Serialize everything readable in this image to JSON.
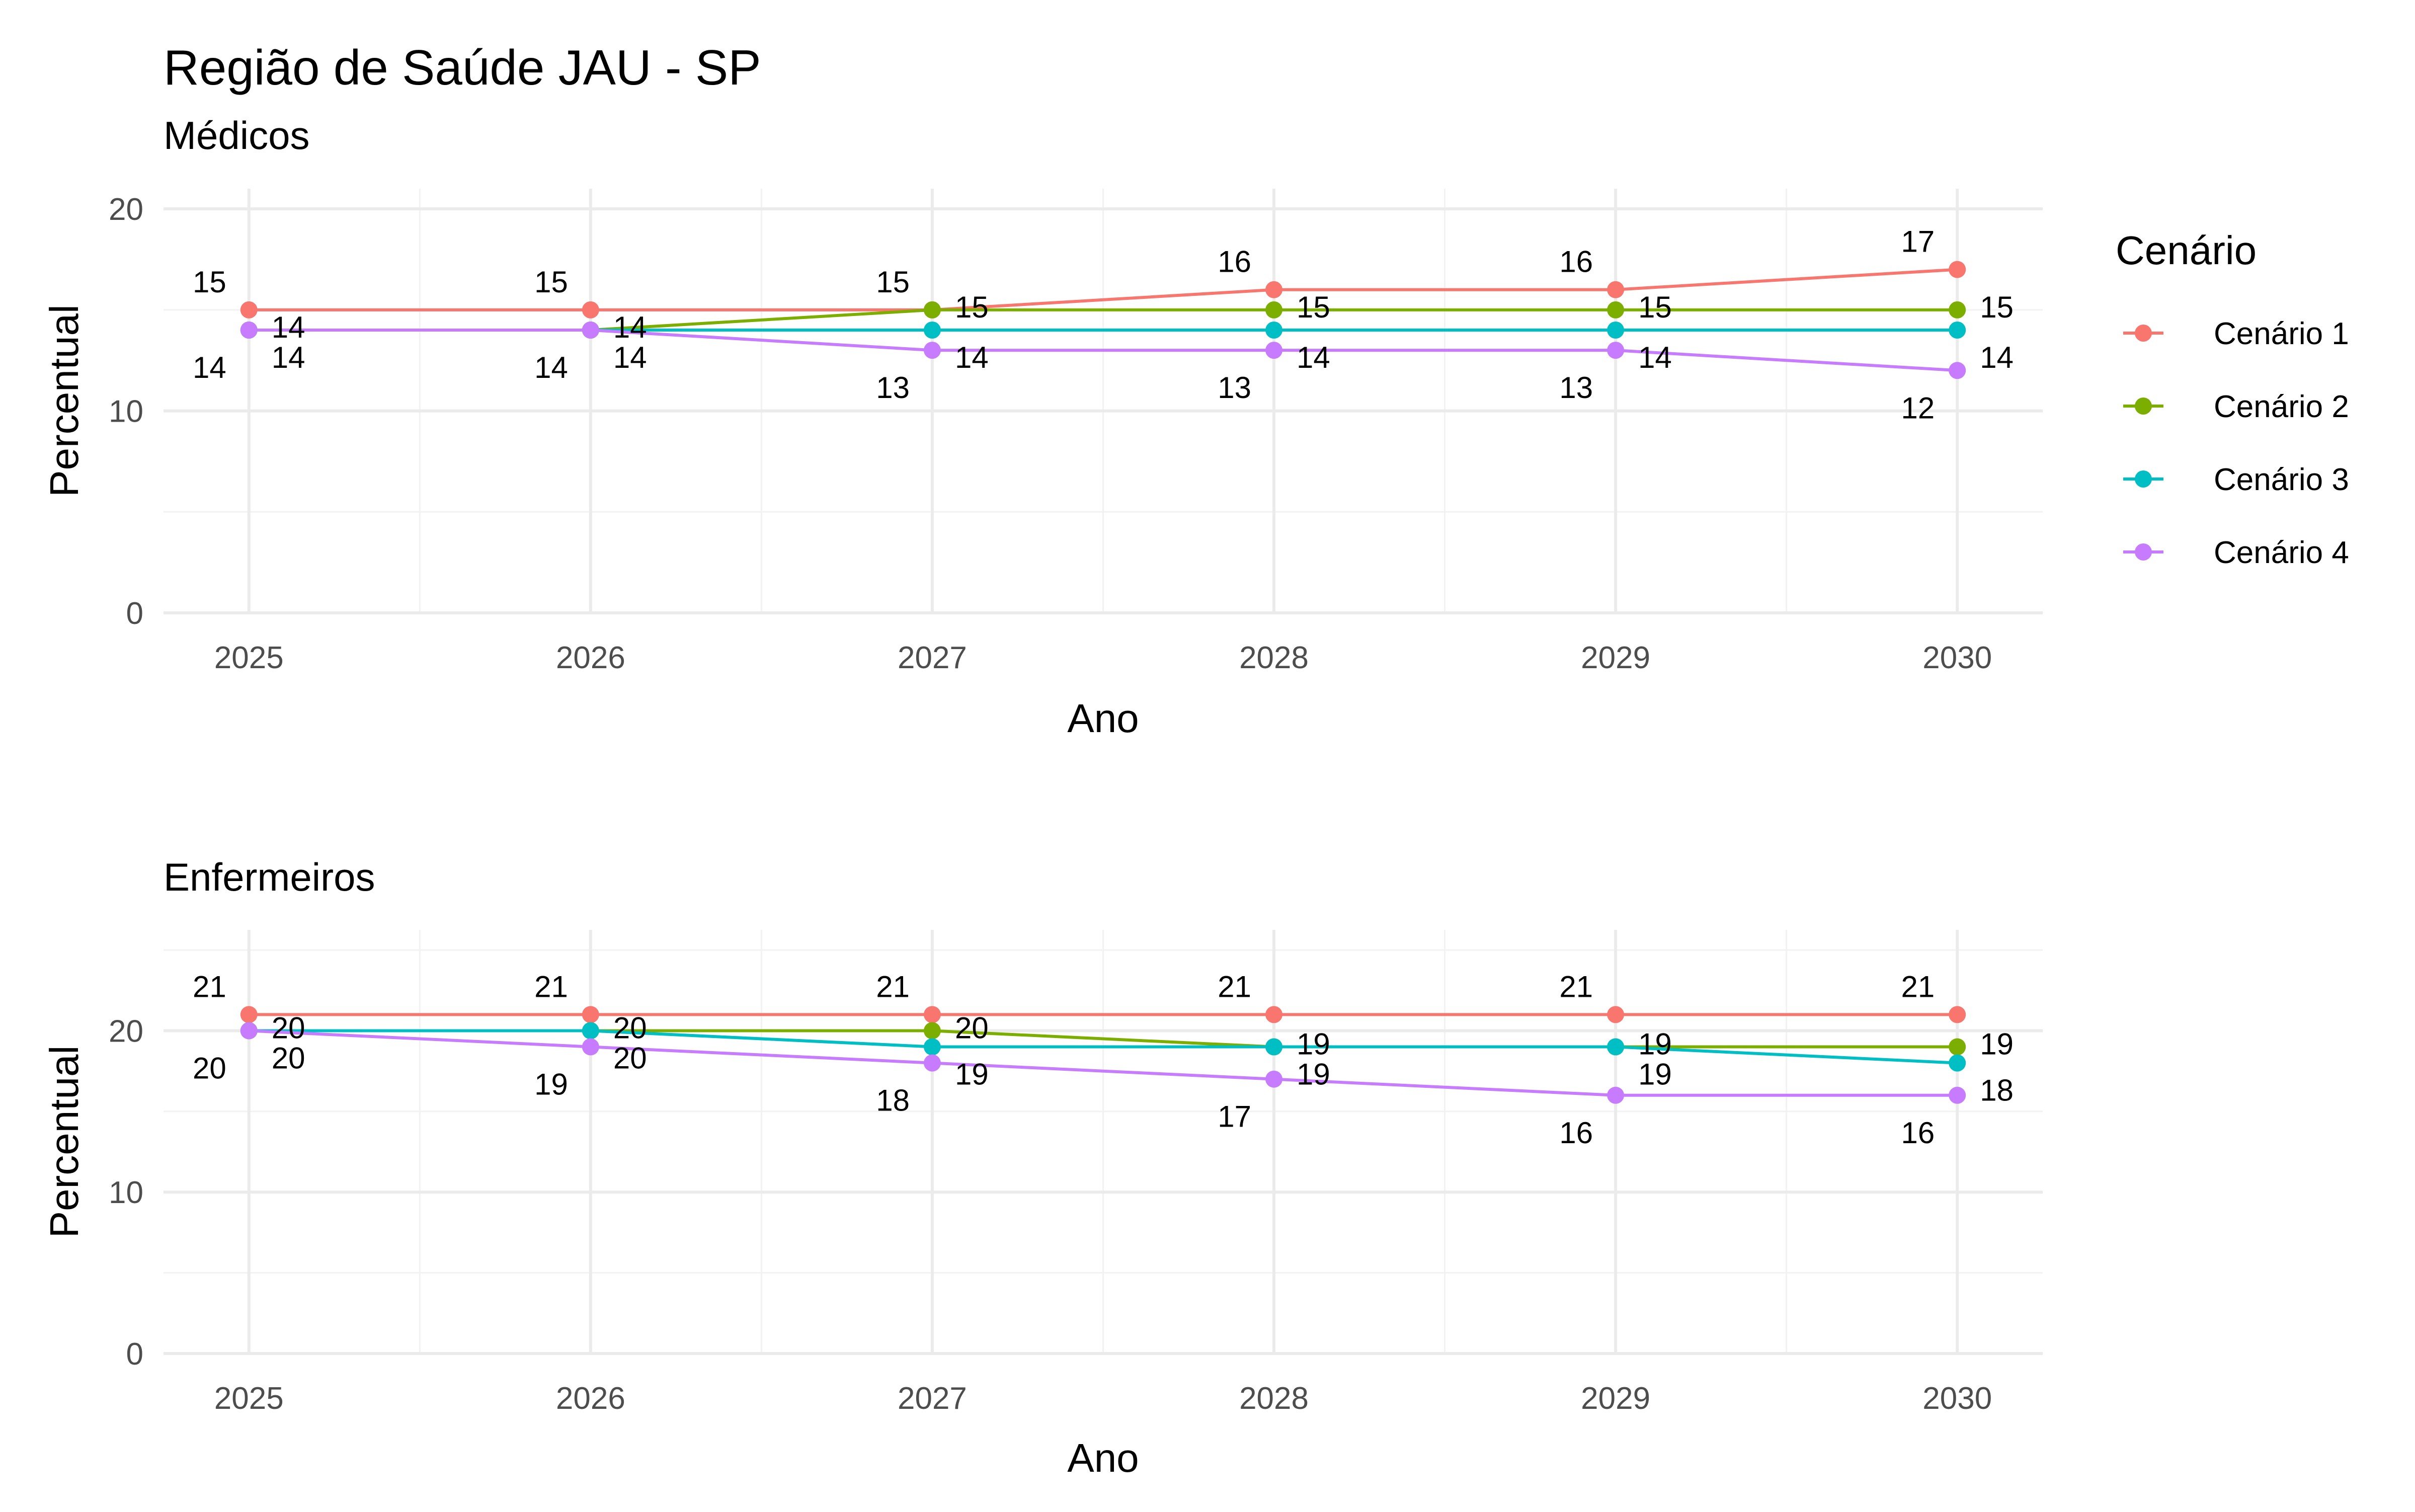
{
  "header": {
    "title": "Região de Saúde JAU - SP"
  },
  "legend": {
    "title": "Cenário",
    "placement": "right",
    "items": [
      {
        "name": "Cenário 1",
        "color": "#F8766D"
      },
      {
        "name": "Cenário 2",
        "color": "#7CAE00"
      },
      {
        "name": "Cenário 3",
        "color": "#00BFC4"
      },
      {
        "name": "Cenário 4",
        "color": "#C77CFF"
      }
    ]
  },
  "chart_data": [
    {
      "type": "line",
      "subtitle": "Médicos",
      "xlabel": "Ano",
      "ylabel": "Percentual",
      "x": [
        2025,
        2026,
        2027,
        2028,
        2029,
        2030
      ],
      "x_ticks": [
        "2025",
        "2026",
        "2027",
        "2028",
        "2029",
        "2030"
      ],
      "y_ticks": [
        "0",
        "10",
        "20"
      ],
      "ylim": [
        0,
        20
      ],
      "grid": true,
      "series": [
        {
          "name": "Cenário 1",
          "color": "#F8766D",
          "values": [
            15,
            15,
            15,
            16,
            16,
            17
          ],
          "labels": [
            "15",
            "15",
            "15",
            "16",
            "16",
            "17"
          ]
        },
        {
          "name": "Cenário 2",
          "color": "#7CAE00",
          "values": [
            14,
            14,
            15,
            15,
            15,
            15
          ],
          "labels": [
            "14",
            "14",
            "15",
            "15",
            "15",
            "15"
          ]
        },
        {
          "name": "Cenário 3",
          "color": "#00BFC4",
          "values": [
            14,
            14,
            14,
            14,
            14,
            14
          ],
          "labels": [
            "14",
            "14",
            "14",
            "14",
            "14",
            "14"
          ]
        },
        {
          "name": "Cenário 4",
          "color": "#C77CFF",
          "values": [
            14,
            14,
            13,
            13,
            13,
            12
          ],
          "labels": [
            "14",
            "14",
            "13",
            "13",
            "13",
            "12"
          ]
        }
      ]
    },
    {
      "type": "line",
      "subtitle": "Enfermeiros",
      "xlabel": "Ano",
      "ylabel": "Percentual",
      "x": [
        2025,
        2026,
        2027,
        2028,
        2029,
        2030
      ],
      "x_ticks": [
        "2025",
        "2026",
        "2027",
        "2028",
        "2029",
        "2030"
      ],
      "y_ticks": [
        "0",
        "10",
        "20"
      ],
      "ylim": [
        0,
        25
      ],
      "grid": true,
      "series": [
        {
          "name": "Cenário 1",
          "color": "#F8766D",
          "values": [
            21,
            21,
            21,
            21,
            21,
            21
          ],
          "labels": [
            "21",
            "21",
            "21",
            "21",
            "21",
            "21"
          ]
        },
        {
          "name": "Cenário 2",
          "color": "#7CAE00",
          "values": [
            20,
            20,
            20,
            19,
            19,
            19
          ],
          "labels": [
            "20",
            "20",
            "20",
            "19",
            "19",
            "19"
          ]
        },
        {
          "name": "Cenário 3",
          "color": "#00BFC4",
          "values": [
            20,
            20,
            19,
            19,
            19,
            18
          ],
          "labels": [
            "20",
            "20",
            "19",
            "19",
            "19",
            "18"
          ]
        },
        {
          "name": "Cenário 4",
          "color": "#C77CFF",
          "values": [
            20,
            19,
            18,
            17,
            16,
            16
          ],
          "labels": [
            "20",
            "19",
            "18",
            "17",
            "16",
            "16"
          ]
        }
      ]
    }
  ]
}
